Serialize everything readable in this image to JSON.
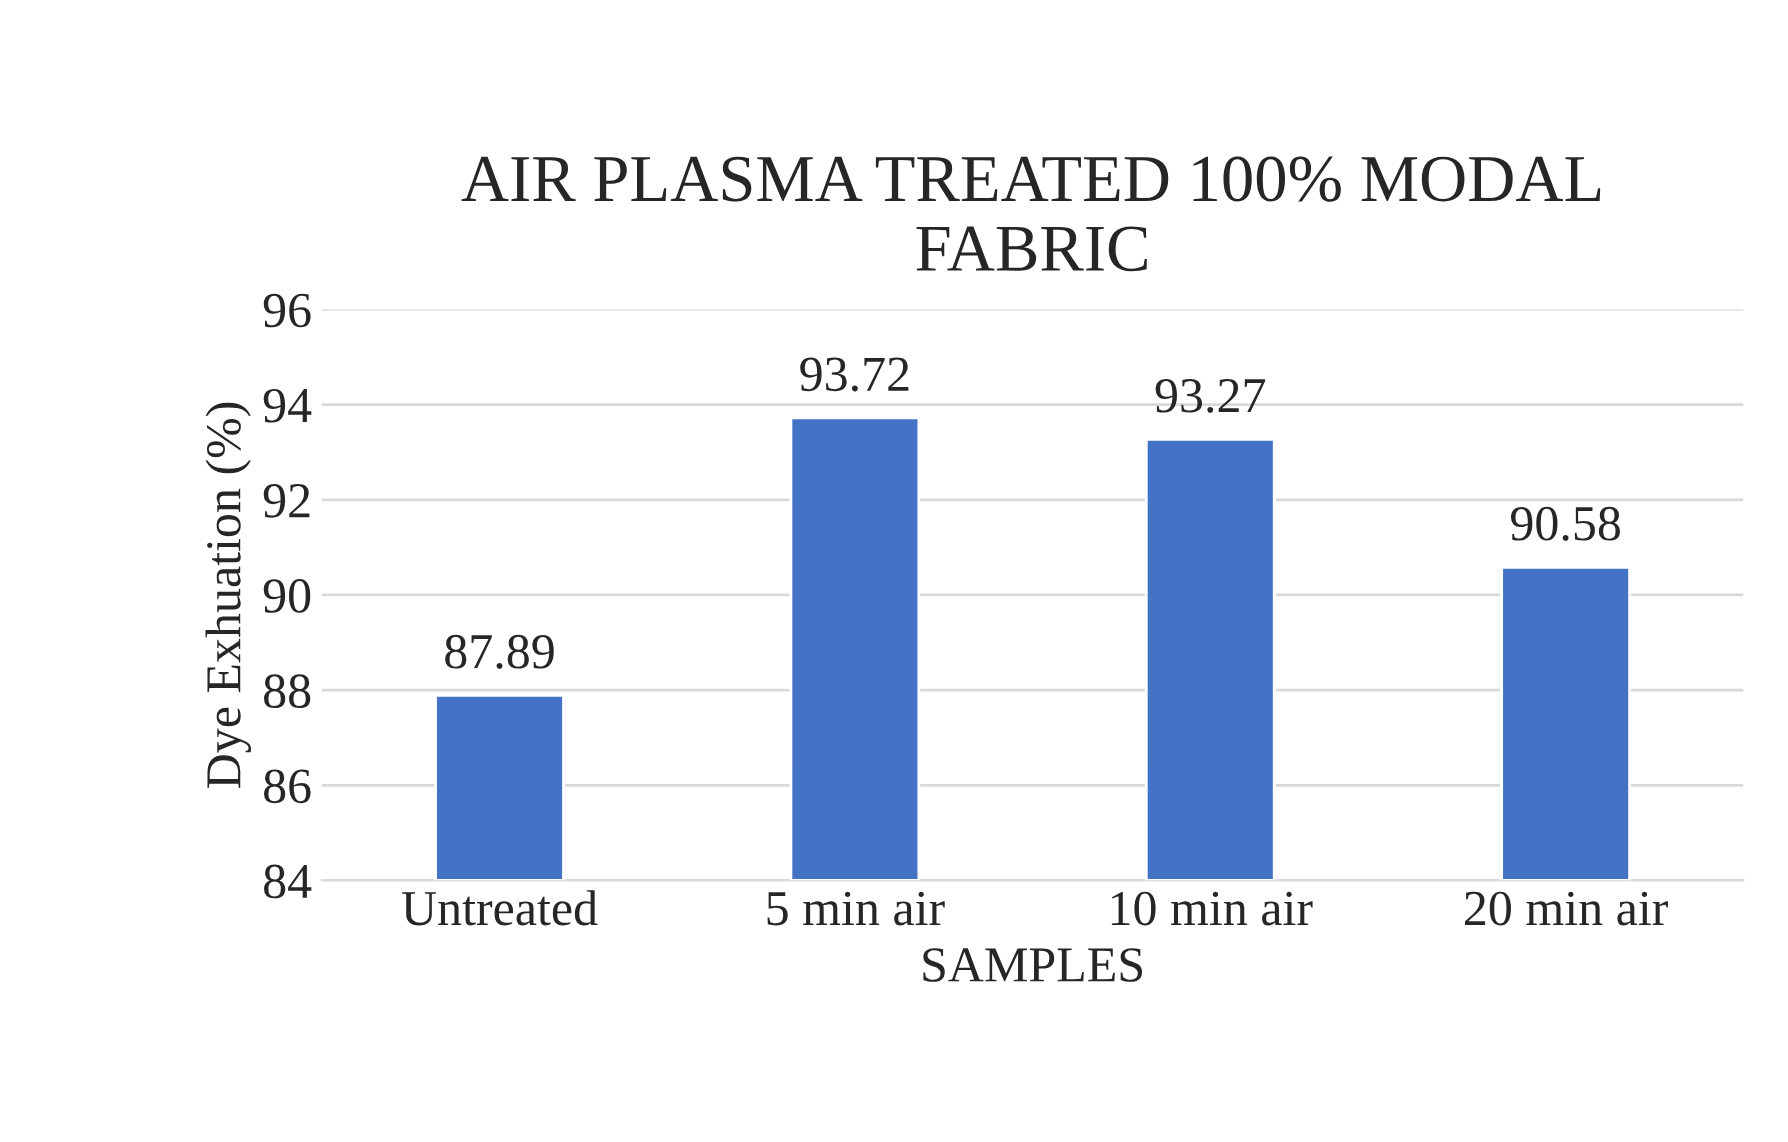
{
  "chart_data": {
    "type": "bar",
    "title": "AIR PLASMA TREATED 100% MODAL\nFABRIC",
    "xlabel": "SAMPLES",
    "ylabel": "Dye Exhuation (%)",
    "categories": [
      "Untreated",
      "5 min air",
      "10 min air",
      "20 min air"
    ],
    "values": [
      87.89,
      93.72,
      93.27,
      90.58
    ],
    "color": "#4472c4",
    "ylim": [
      84,
      96
    ],
    "yticks": [
      84,
      86,
      88,
      90,
      92,
      94,
      96
    ],
    "grid": "y",
    "data_labels": true
  }
}
